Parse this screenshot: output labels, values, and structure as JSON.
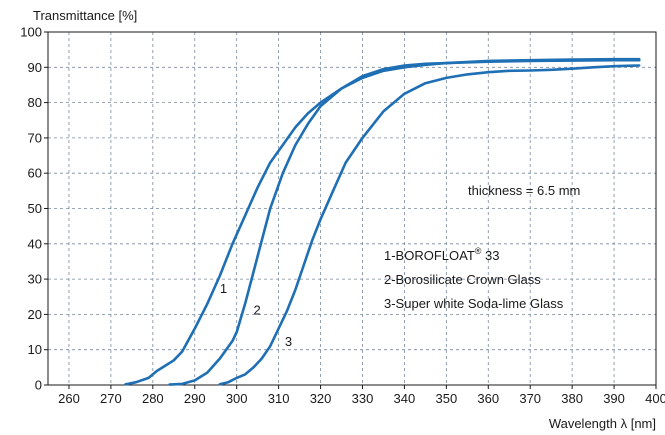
{
  "chart_data": {
    "type": "line",
    "ylabel": "Transmittance [%]",
    "xlabel": "Wavelength λ [nm]",
    "xlim": [
      255,
      400
    ],
    "ylim": [
      0,
      100
    ],
    "x_ticks": [
      260,
      270,
      280,
      290,
      300,
      310,
      320,
      330,
      340,
      350,
      360,
      370,
      380,
      390,
      400
    ],
    "y_ticks": [
      0,
      10,
      20,
      30,
      40,
      50,
      60,
      70,
      80,
      90,
      100
    ],
    "grid": true,
    "line_color": "#1f6fb5",
    "grid_color": "#7a8aa0",
    "annotation": "thickness = 6.5 mm",
    "legend": [
      {
        "prefix": "1-BOROFLOAT",
        "sup": "®",
        "suffix": " 33"
      },
      {
        "prefix": "2-Borosilicate  Crown Glass",
        "sup": "",
        "suffix": ""
      },
      {
        "prefix": "3-Super white Soda-lime Glass",
        "sup": "",
        "suffix": ""
      }
    ],
    "series": [
      {
        "label": "1",
        "label_at": [
          296,
          26
        ],
        "x": [
          273.5,
          276,
          279,
          281,
          283,
          285,
          287,
          290,
          293,
          296,
          299,
          302,
          305,
          308,
          311,
          314,
          317,
          320,
          325,
          330,
          335,
          340,
          345,
          350,
          360,
          370,
          380,
          390,
          396
        ],
        "y": [
          0.2,
          0.8,
          2,
          4,
          5.5,
          7,
          9.5,
          16,
          23,
          31,
          40,
          48,
          56,
          63,
          68,
          73,
          77,
          80,
          84,
          87,
          89,
          90,
          90.7,
          91.2,
          91.8,
          92,
          92.2,
          92.3,
          92.3
        ]
      },
      {
        "label": "2",
        "label_at": [
          304,
          20
        ],
        "x": [
          284,
          287,
          290,
          293,
          296,
          299,
          300,
          302,
          304,
          306,
          308,
          311,
          314,
          317,
          320,
          325,
          330,
          335,
          340,
          345,
          350,
          360,
          370,
          380,
          390,
          396
        ],
        "y": [
          0.1,
          0.3,
          1.3,
          3.5,
          7.5,
          12.5,
          15,
          23,
          32,
          41,
          50,
          60,
          68,
          74,
          79,
          84,
          87.5,
          89.5,
          90.5,
          91,
          91.2,
          91.6,
          91.8,
          91.9,
          92,
          92
        ]
      },
      {
        "label": "3",
        "label_at": [
          311.5,
          11
        ],
        "x": [
          296,
          298,
          300,
          302,
          304,
          306,
          308,
          310,
          312,
          314,
          316,
          318,
          320,
          323,
          326,
          330,
          335,
          340,
          345,
          350,
          355,
          360,
          365,
          370,
          375,
          380,
          385,
          390,
          396
        ],
        "y": [
          0.2,
          0.8,
          2,
          3,
          5,
          7.5,
          11,
          16,
          21,
          27,
          34,
          41,
          47,
          55,
          63,
          70,
          77.5,
          82.5,
          85.5,
          87,
          88,
          88.6,
          89,
          89.1,
          89.3,
          89.6,
          90,
          90.3,
          90.5
        ]
      }
    ]
  }
}
